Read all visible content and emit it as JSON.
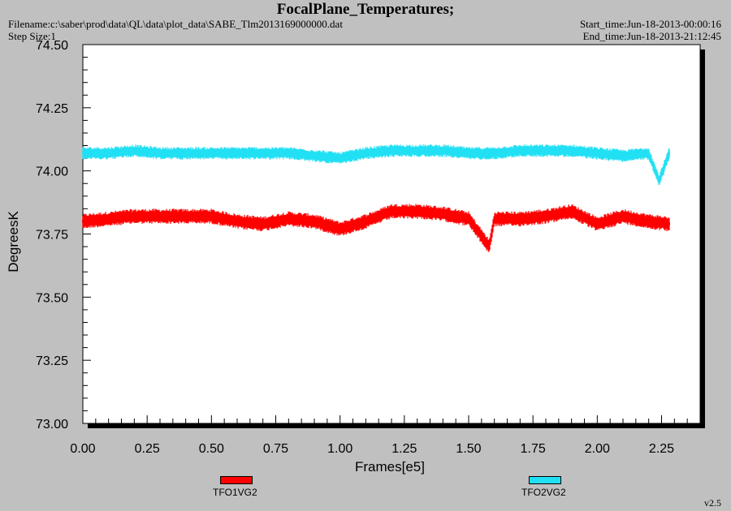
{
  "header": {
    "title": "FocalPlane_Temperatures;",
    "filename": "Filename:c:\\saber\\prod\\data\\QL\\data\\plot_data\\SABE_Tlm2013169000000.dat",
    "step_size": "Step Size:1",
    "start_time": "Start_time:Jun-18-2013-00:00:16",
    "end_time": "End_time:Jun-18-2013-21:12:45"
  },
  "footer": {
    "version": "v2.5"
  },
  "colors": {
    "background": "#c0c0c0",
    "plot_area": "#ffffff",
    "series1": "#ff0000",
    "series2": "#22e0f4"
  },
  "chart_data": {
    "type": "line",
    "title": "FocalPlane_Temperatures;",
    "xlabel": "Frames[e5]",
    "ylabel": "DegreesK",
    "xlim": [
      0.0,
      2.4
    ],
    "ylim": [
      73.0,
      74.5
    ],
    "xticks": [
      "0.00",
      "0.25",
      "0.50",
      "0.75",
      "1.00",
      "1.25",
      "1.50",
      "1.75",
      "2.00",
      "2.25"
    ],
    "yticks": [
      "73.00",
      "73.25",
      "73.50",
      "73.75",
      "74.00",
      "74.25",
      "74.50"
    ],
    "grid": false,
    "legend_position": "bottom",
    "series": [
      {
        "name": "TFO1VG2",
        "color": "#ff0000",
        "x": [
          0.0,
          0.1,
          0.2,
          0.3,
          0.4,
          0.5,
          0.6,
          0.7,
          0.8,
          0.9,
          1.0,
          1.1,
          1.2,
          1.3,
          1.4,
          1.5,
          1.58,
          1.6,
          1.7,
          1.8,
          1.9,
          2.0,
          2.1,
          2.2,
          2.28
        ],
        "y": [
          73.8,
          73.81,
          73.82,
          73.82,
          73.82,
          73.82,
          73.8,
          73.79,
          73.81,
          73.8,
          73.77,
          73.8,
          73.84,
          73.84,
          73.83,
          73.81,
          73.7,
          73.81,
          73.81,
          73.82,
          73.84,
          73.79,
          73.82,
          73.8,
          73.79
        ],
        "noise_band": 0.06
      },
      {
        "name": "TFO2VG2",
        "color": "#22e0f4",
        "x": [
          0.0,
          0.1,
          0.2,
          0.3,
          0.4,
          0.5,
          0.6,
          0.7,
          0.8,
          0.9,
          1.0,
          1.1,
          1.2,
          1.3,
          1.4,
          1.5,
          1.6,
          1.7,
          1.8,
          1.9,
          2.0,
          2.1,
          2.2,
          2.24,
          2.28
        ],
        "y": [
          74.07,
          74.07,
          74.08,
          74.07,
          74.07,
          74.07,
          74.07,
          74.07,
          74.07,
          74.06,
          74.05,
          74.07,
          74.08,
          74.08,
          74.08,
          74.07,
          74.07,
          74.08,
          74.08,
          74.08,
          74.07,
          74.06,
          74.07,
          73.96,
          74.07
        ],
        "noise_band": 0.05
      }
    ]
  }
}
